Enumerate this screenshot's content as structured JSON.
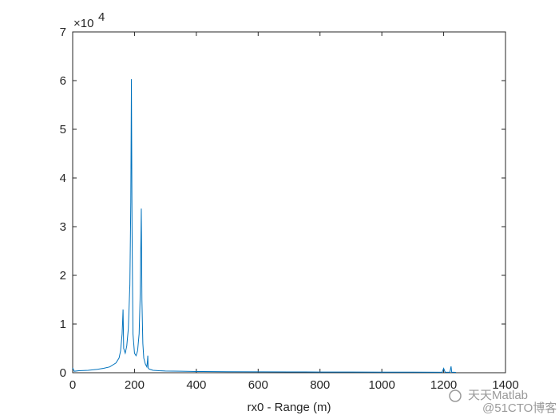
{
  "chart_data": {
    "type": "line",
    "xlabel": "rx0 - Range (m)",
    "y_exponent_base": "×10",
    "y_exponent": "4",
    "x": [
      0,
      5,
      20,
      50,
      80,
      100,
      120,
      140,
      150,
      155,
      160,
      163,
      165,
      170,
      175,
      180,
      185,
      188,
      190,
      192,
      195,
      200,
      205,
      210,
      215,
      218,
      220,
      222,
      224,
      227,
      230,
      235,
      240,
      242,
      243,
      244,
      246,
      250,
      260,
      280,
      300,
      350,
      400,
      500,
      600,
      700,
      800,
      900,
      1000,
      1100,
      1195,
      1200,
      1205,
      1220,
      1224,
      1226,
      1230,
      1240
    ],
    "series": [
      {
        "color": "#0072bd",
        "values": [
          1000,
          300,
          400,
          500,
          700,
          900,
          1200,
          2000,
          3000,
          4500,
          8000,
          13000,
          5000,
          4000,
          5500,
          9000,
          18000,
          35000,
          60300,
          30000,
          8000,
          4000,
          3500,
          4500,
          8000,
          15000,
          24000,
          33700,
          15000,
          6000,
          3000,
          1800,
          1200,
          2500,
          3500,
          1000,
          800,
          700,
          500,
          400,
          350,
          300,
          250,
          200,
          180,
          160,
          150,
          140,
          130,
          120,
          100,
          900,
          100,
          100,
          1300,
          100,
          100,
          80
        ]
      }
    ],
    "xlim": [
      0,
      1400
    ],
    "xticks": [
      0,
      200,
      400,
      600,
      800,
      1000,
      1200,
      1400
    ],
    "ylim": [
      0,
      70000
    ],
    "yticks": [
      {
        "value": 0,
        "label": "0"
      },
      {
        "value": 10000,
        "label": "1"
      },
      {
        "value": 20000,
        "label": "2"
      },
      {
        "value": 30000,
        "label": "3"
      },
      {
        "value": 40000,
        "label": "4"
      },
      {
        "value": 50000,
        "label": "5"
      },
      {
        "value": 60000,
        "label": "6"
      },
      {
        "value": 70000,
        "label": "7"
      }
    ]
  },
  "watermark": {
    "line1": "天天Matlab",
    "line2": "@51CTO博客"
  }
}
